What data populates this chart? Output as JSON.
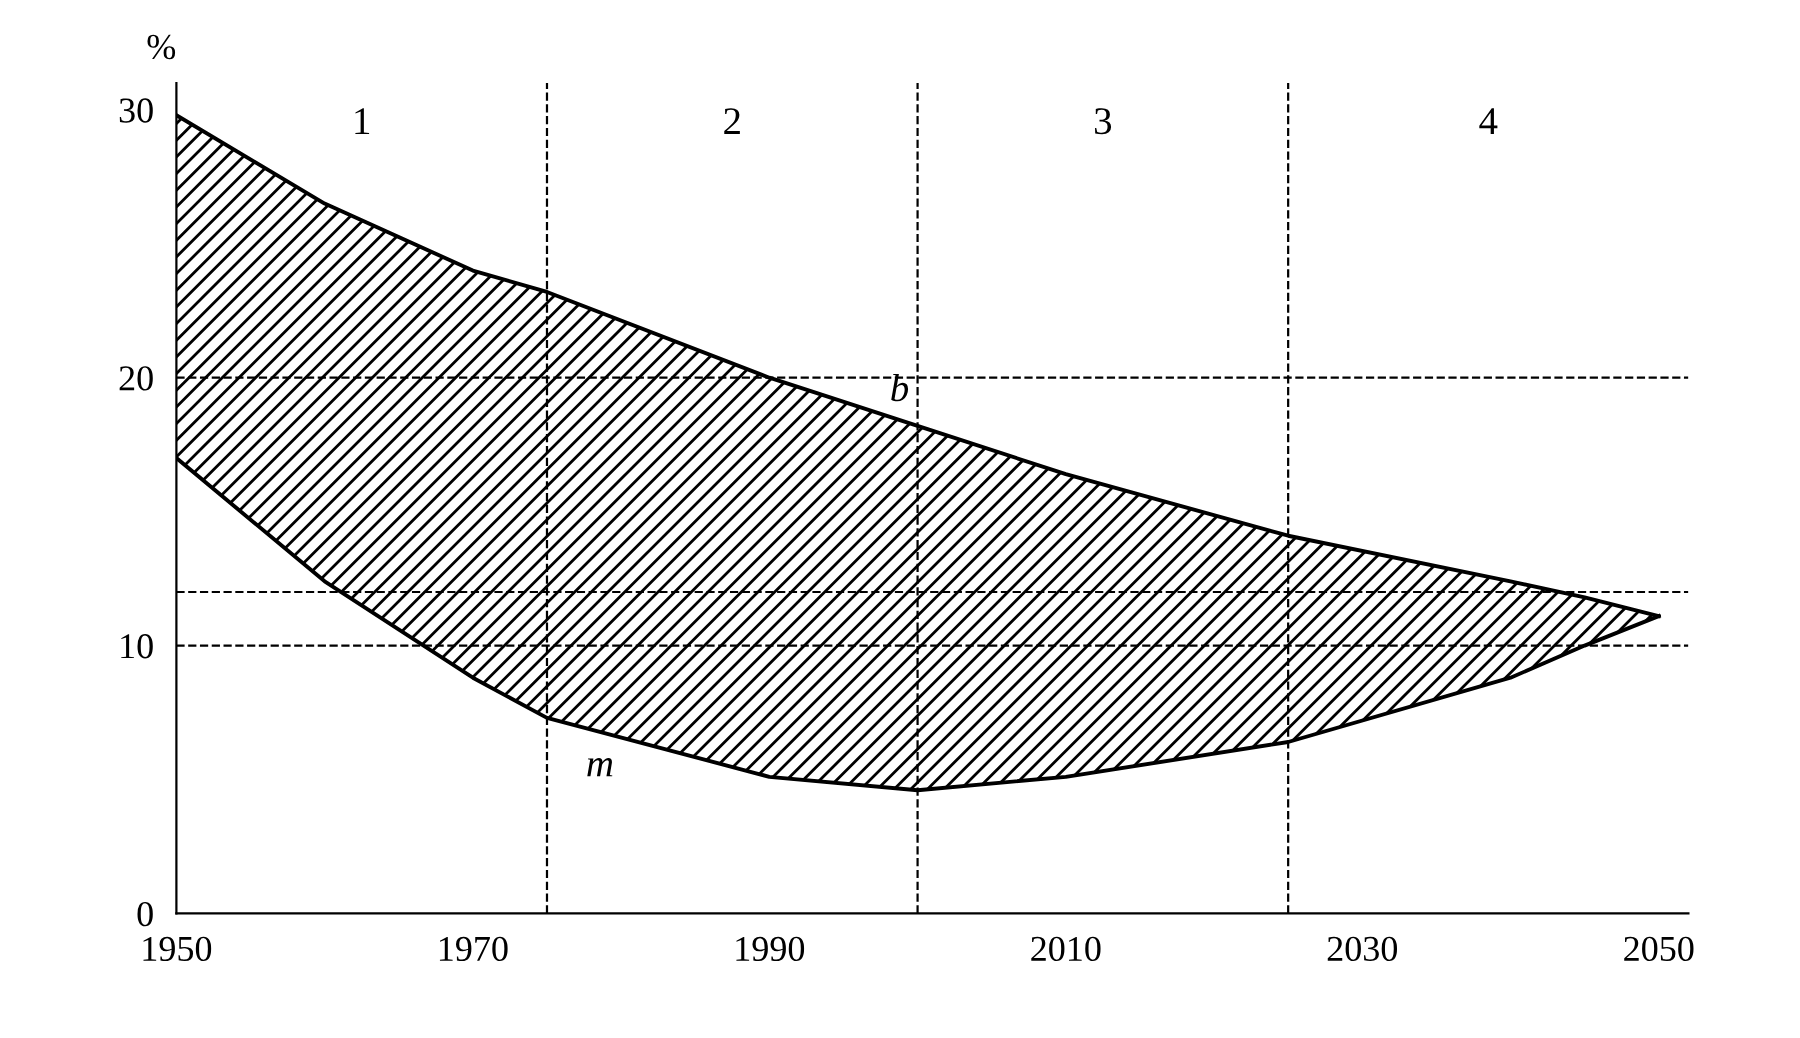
{
  "chart_data": {
    "type": "line",
    "ylabel": "%",
    "x": [
      1950,
      1960,
      1970,
      1975,
      1990,
      2000,
      2010,
      2025,
      2040,
      2045,
      2050
    ],
    "series": [
      {
        "name": "b",
        "color": "#000000",
        "values": [
          29.8,
          26.5,
          24,
          23.2,
          20,
          18.2,
          16.4,
          14.1,
          12.4,
          11.8,
          11.1
        ],
        "lower": [
          17,
          12.4,
          8.8,
          7.3,
          5.1,
          4.6,
          5.1,
          6.4,
          8.8,
          10,
          11.1
        ],
        "upper": [
          29.8,
          26.5,
          24,
          23.2,
          20,
          18.2,
          16.4,
          14.1,
          12.4,
          11.8,
          11.1
        ]
      },
      {
        "name": "m",
        "color": "#000000",
        "values": [
          17,
          12.4,
          8.8,
          7.3,
          5.1,
          4.6,
          5.1,
          6.4,
          8.8,
          10,
          11.1
        ]
      }
    ],
    "xlim": [
      1950,
      2052
    ],
    "ylim": [
      0,
      31
    ],
    "xticks": [
      1950,
      1970,
      1990,
      2010,
      2030,
      2050
    ],
    "yticks": [
      0,
      10,
      20,
      30
    ],
    "ref_lines": [
      {
        "axis": "x",
        "value": 1975,
        "line_style": "dashed"
      },
      {
        "axis": "x",
        "value": 2000,
        "line_style": "dashed"
      },
      {
        "axis": "x",
        "value": 2025,
        "line_style": "dashed"
      },
      {
        "axis": "y",
        "value": 20,
        "line_style": "dashed"
      },
      {
        "axis": "y",
        "value": 12,
        "line_style": "dashed"
      },
      {
        "axis": "y",
        "value": 10,
        "line_style": "dashed"
      }
    ],
    "annotations": [
      "1",
      "2",
      "3",
      "4"
    ],
    "grid": false,
    "line_style": "solid",
    "marker": "none"
  }
}
